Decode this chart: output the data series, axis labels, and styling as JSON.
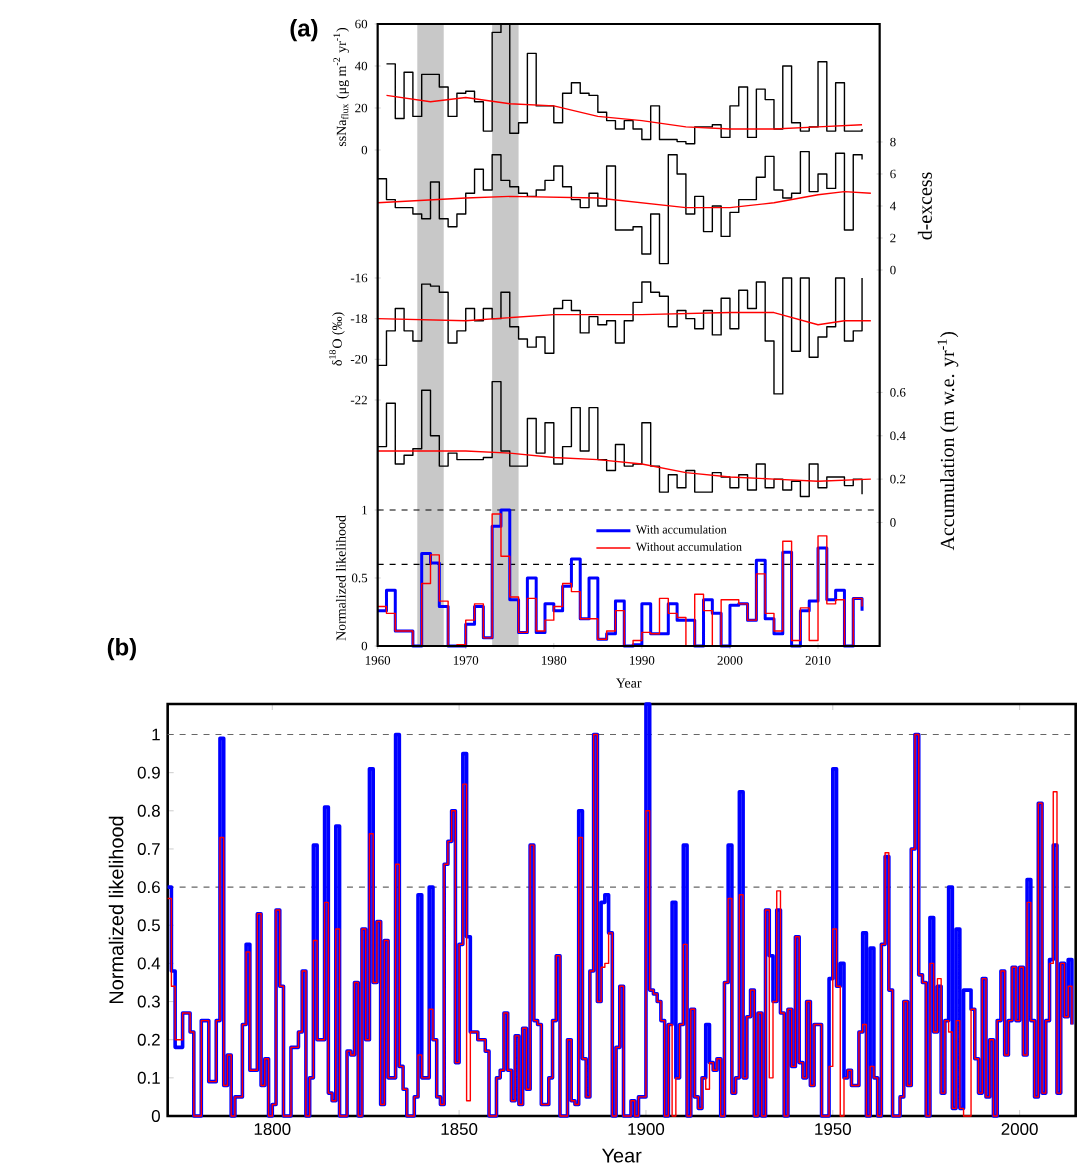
{
  "chart_data": [
    {
      "type": "step",
      "title": "(a)",
      "ylabel": "ssNa$_{flux}$ (μg m$^{-2}$ yr$^{-1}$)",
      "xlim": [
        1960,
        2017
      ],
      "ylim": [
        0,
        60
      ],
      "yticks": [
        0,
        20,
        40,
        60
      ],
      "tick_labels": "y",
      "x": [
        1961,
        1962,
        1963,
        1964,
        1965,
        1966,
        1967,
        1968,
        1969,
        1970,
        1971,
        1972,
        1973,
        1974,
        1975,
        1976,
        1977,
        1978,
        1979,
        1980,
        1981,
        1982,
        1983,
        1984,
        1985,
        1986,
        1987,
        1988,
        1989,
        1990,
        1991,
        1992,
        1993,
        1994,
        1995,
        1996,
        1997,
        1998,
        1999,
        2000,
        2001,
        2002,
        2003,
        2004,
        2005,
        2006,
        2007,
        2008,
        2009,
        2010,
        2011,
        2012,
        2013,
        2014,
        2015
      ],
      "series": [
        {
          "color": "#000000",
          "values": [
            41,
            15,
            37,
            16,
            36,
            36,
            30,
            16,
            27,
            28,
            23,
            9,
            56,
            60,
            8,
            13,
            46,
            21,
            21,
            13,
            27,
            32,
            27,
            26,
            18,
            14,
            10,
            14,
            10,
            5,
            21,
            5,
            5,
            4,
            3,
            11,
            11,
            12,
            6,
            21,
            30,
            6,
            29,
            24,
            10,
            40,
            13,
            9,
            11,
            42,
            9,
            32,
            9,
            9,
            10
          ]
        },
        {
          "type": "line",
          "color": "#ff0000",
          "x": [
            1961,
            1966,
            1970,
            1975,
            1980,
            1985,
            1990,
            1995,
            2000,
            2005,
            2010,
            2015
          ],
          "values": [
            26,
            23,
            25,
            22,
            21,
            16,
            14,
            11,
            10,
            10,
            11,
            12
          ]
        }
      ]
    },
    {
      "type": "step",
      "ylabel": "d-excess",
      "xlim": [
        1960,
        2017
      ],
      "ylim": [
        0,
        8
      ],
      "yticks": [
        0,
        2,
        4,
        6,
        8
      ],
      "tick_labels": "y",
      "x": [
        1960,
        1961,
        1962,
        1963,
        1964,
        1965,
        1966,
        1967,
        1968,
        1969,
        1970,
        1971,
        1972,
        1973,
        1974,
        1975,
        1976,
        1977,
        1978,
        1979,
        1980,
        1981,
        1982,
        1983,
        1984,
        1985,
        1986,
        1987,
        1988,
        1989,
        1990,
        1991,
        1992,
        1993,
        1994,
        1995,
        1996,
        1997,
        1998,
        1999,
        2000,
        2001,
        2002,
        2003,
        2004,
        2005,
        2006,
        2007,
        2008,
        2009,
        2010,
        2011,
        2012,
        2013,
        2014,
        2015
      ],
      "series": [
        {
          "color": "#000000",
          "values": [
            5.7,
            4.4,
            3.9,
            3.9,
            3.5,
            3.2,
            5.5,
            3.2,
            2.7,
            3.5,
            4.8,
            6.3,
            5.0,
            7.2,
            5.6,
            5.2,
            4.8,
            4.6,
            5.0,
            5.6,
            6.5,
            5.2,
            4.4,
            3.9,
            4.8,
            4.0,
            6.5,
            2.5,
            2.5,
            2.7,
            1.0,
            3.5,
            0.4,
            7.2,
            6.0,
            3.5,
            4.6,
            2.4,
            4.0,
            2.1,
            3.6,
            4.4,
            4.4,
            5.8,
            7.1,
            5.0,
            4.5,
            4.8,
            7.4,
            4.9,
            6.0,
            5.1,
            7.3,
            2.5,
            7.2,
            6.9
          ]
        },
        {
          "type": "line",
          "color": "#ff0000",
          "x": [
            1960,
            1970,
            1975,
            1985,
            1995,
            2000,
            2005,
            2010,
            2013,
            2016
          ],
          "values": [
            4.2,
            4.5,
            4.6,
            4.5,
            3.9,
            3.9,
            4.2,
            4.7,
            4.9,
            4.8
          ]
        }
      ]
    },
    {
      "type": "step",
      "ylabel": "δ$^{18}$O (‰)",
      "xlim": [
        1960,
        2017
      ],
      "ylim": [
        -22,
        -16
      ],
      "yticks": [
        -22,
        -20,
        -18,
        -16
      ],
      "tick_labels": "y",
      "x": [
        1960,
        1961,
        1962,
        1963,
        1964,
        1965,
        1966,
        1967,
        1968,
        1969,
        1970,
        1971,
        1972,
        1973,
        1974,
        1975,
        1976,
        1977,
        1978,
        1979,
        1980,
        1981,
        1982,
        1983,
        1984,
        1985,
        1986,
        1987,
        1988,
        1989,
        1990,
        1991,
        1992,
        1993,
        1994,
        1995,
        1996,
        1997,
        1998,
        1999,
        2000,
        2001,
        2002,
        2003,
        2004,
        2005,
        2006,
        2007,
        2008,
        2009,
        2010,
        2011,
        2012,
        2013,
        2014,
        2015
      ],
      "series": [
        {
          "color": "#000000",
          "values": [
            -20.3,
            -18.6,
            -17.5,
            -18.6,
            -19.1,
            -16.3,
            -16.4,
            -16.7,
            -19.2,
            -18.6,
            -17.5,
            -18.1,
            -17.5,
            -18.0,
            -16.7,
            -18.4,
            -19.0,
            -19.4,
            -18.9,
            -19.7,
            -17.5,
            -17.1,
            -17.6,
            -18.7,
            -17.9,
            -18.3,
            -18.1,
            -19.2,
            -18.1,
            -17.2,
            -16.2,
            -16.7,
            -16.9,
            -18.4,
            -17.6,
            -18.0,
            -18.5,
            -17.6,
            -18.8,
            -17.0,
            -18.5,
            -16.6,
            -17.5,
            -16.2,
            -19.1,
            -21.7,
            -16.0,
            -19.6,
            -16.0,
            -19.9,
            -18.9,
            -18.4,
            -16.0,
            -19.1,
            -18.6,
            -16.0
          ]
        },
        {
          "type": "line",
          "color": "#ff0000",
          "x": [
            1960,
            1970,
            1980,
            1990,
            2000,
            2005,
            2010,
            2013,
            2016
          ],
          "values": [
            -18.0,
            -18.1,
            -17.8,
            -17.8,
            -17.7,
            -17.7,
            -18.3,
            -18.1,
            -18.1
          ]
        }
      ]
    },
    {
      "type": "step",
      "ylabel": "Accumulation (m w.e. yr$^{-1}$)",
      "xlim": [
        1960,
        2017
      ],
      "ylim": [
        -0.57,
        2.3
      ],
      "yticks": [
        0,
        0.2,
        0.4,
        0.6
      ],
      "tick_labels": "y",
      "x": [
        1960,
        1961,
        1962,
        1963,
        1964,
        1965,
        1966,
        1967,
        1968,
        1969,
        1970,
        1971,
        1972,
        1973,
        1974,
        1975,
        1976,
        1977,
        1978,
        1979,
        1980,
        1981,
        1982,
        1983,
        1984,
        1985,
        1986,
        1987,
        1988,
        1989,
        1990,
        1991,
        1992,
        1993,
        1994,
        1995,
        1996,
        1997,
        1998,
        1999,
        2000,
        2001,
        2002,
        2003,
        2004,
        2005,
        2006,
        2007,
        2008,
        2009,
        2010,
        2011,
        2012,
        2013,
        2014,
        2015
      ],
      "series": [
        {
          "color": "#000000",
          "values": [
            0.35,
            0.55,
            0.27,
            0.31,
            0.34,
            0.61,
            0.4,
            0.26,
            0.32,
            0.29,
            0.29,
            0.29,
            0.3,
            0.65,
            0.33,
            0.26,
            0.26,
            0.48,
            0.32,
            0.46,
            0.27,
            0.35,
            0.53,
            0.33,
            0.53,
            0.29,
            0.24,
            0.36,
            0.26,
            0.27,
            0.46,
            0.26,
            0.14,
            0.22,
            0.16,
            0.24,
            0.14,
            0.14,
            0.23,
            0.21,
            0.16,
            0.22,
            0.15,
            0.27,
            0.16,
            0.2,
            0.15,
            0.19,
            0.12,
            0.27,
            0.16,
            0.21,
            0.21,
            0.17,
            0.2,
            0.13
          ]
        },
        {
          "type": "line",
          "color": "#ff0000",
          "x": [
            1960,
            1970,
            1975,
            1980,
            1985,
            1990,
            1995,
            2000,
            2005,
            2010,
            2016
          ],
          "values": [
            0.33,
            0.33,
            0.32,
            0.3,
            0.29,
            0.27,
            0.23,
            0.21,
            0.2,
            0.19,
            0.2
          ]
        }
      ]
    },
    {
      "type": "step",
      "xlabel": "Year",
      "ylabel": "Normalized likelihood",
      "xlim": [
        1960,
        2017
      ],
      "ylim": [
        0,
        1
      ],
      "xticks": [
        1960,
        1970,
        1980,
        1990,
        2000,
        2010
      ],
      "yticks": [
        0,
        0.5,
        1
      ],
      "legend": "top",
      "ref_lines": [
        {
          "axis": "y",
          "value": 1,
          "color": "#000000",
          "line_style": "dashed"
        },
        {
          "axis": "y",
          "value": 0.6,
          "color": "#000000",
          "line_style": "dashed"
        }
      ],
      "bands": [
        {
          "axis": "x",
          "from": 1964.5,
          "to": 1967.5,
          "color": "#c8c8c8"
        },
        {
          "axis": "x",
          "from": 1973,
          "to": 1976,
          "color": "#c8c8c8"
        }
      ],
      "x": [
        1960,
        1961,
        1962,
        1963,
        1964,
        1965,
        1966,
        1967,
        1968,
        1969,
        1970,
        1971,
        1972,
        1973,
        1974,
        1975,
        1976,
        1977,
        1978,
        1979,
        1980,
        1981,
        1982,
        1983,
        1984,
        1985,
        1986,
        1987,
        1988,
        1989,
        1990,
        1991,
        1992,
        1993,
        1994,
        1995,
        1996,
        1997,
        1998,
        1999,
        2000,
        2001,
        2002,
        2003,
        2004,
        2005,
        2006,
        2007,
        2008,
        2009,
        2010,
        2011,
        2012,
        2013,
        2014,
        2015
      ],
      "series": [
        {
          "name": "With accumulation",
          "color": "#0000ff",
          "values": [
            0.26,
            0.41,
            0.11,
            0.11,
            0,
            0.68,
            0.61,
            0.29,
            0,
            0,
            0.16,
            0.29,
            0.06,
            0.88,
            1.0,
            0.34,
            0.1,
            0.5,
            0.1,
            0.31,
            0.26,
            0.44,
            0.64,
            0.2,
            0.5,
            0.05,
            0.09,
            0.33,
            0,
            0.01,
            0.31,
            0.09,
            0.09,
            0.31,
            0.19,
            0.19,
            0,
            0.34,
            0.24,
            0,
            0.3,
            0.31,
            0.19,
            0.63,
            0.2,
            0.09,
            0.69,
            0,
            0.26,
            0.33,
            0.72,
            0.34,
            0.41,
            0,
            0.35,
            0.26
          ]
        },
        {
          "name": "Without accumulation",
          "color": "#ff0000",
          "values": [
            0.29,
            0.24,
            0.11,
            0.11,
            0,
            0.46,
            0.67,
            0.33,
            0,
            0.01,
            0.19,
            0.31,
            0.06,
            0.97,
            0.66,
            0.36,
            0.1,
            0.35,
            0.11,
            0.19,
            0.29,
            0.46,
            0.4,
            0.2,
            0.2,
            0.05,
            0.11,
            0.26,
            0,
            0.04,
            0.1,
            0.09,
            0.35,
            0.24,
            0.21,
            0,
            0.38,
            0.26,
            0,
            0.34,
            0.34,
            0.31,
            0.19,
            0.53,
            0.24,
            0.11,
            0.77,
            0.04,
            0.28,
            0.04,
            0.81,
            0.31,
            0.34,
            0,
            0.35,
            0.29
          ]
        }
      ]
    },
    {
      "type": "step",
      "title": "(b)",
      "xlabel": "Year",
      "ylabel": "Normalized likelihood",
      "xlim": [
        1772,
        2015
      ],
      "ylim": [
        0,
        1.08
      ],
      "xticks": [
        1800,
        1850,
        1900,
        1950,
        2000
      ],
      "yticks": [
        0,
        0.1,
        0.2,
        0.3,
        0.4,
        0.5,
        0.6,
        0.7,
        0.8,
        0.9,
        1
      ],
      "ref_lines": [
        {
          "axis": "y",
          "value": 1,
          "color": "#666666",
          "line_style": "dashed"
        },
        {
          "axis": "y",
          "value": 0.6,
          "color": "#666666",
          "line_style": "dashed"
        }
      ],
      "x": [
        1772,
        1773,
        1774,
        1776,
        1778,
        1779,
        1781,
        1783,
        1785,
        1786,
        1787,
        1788,
        1789,
        1790,
        1792,
        1793,
        1794,
        1796,
        1797,
        1798,
        1799,
        1800,
        1801,
        1802,
        1803,
        1805,
        1807,
        1808,
        1809,
        1810,
        1811,
        1812,
        1814,
        1815,
        1816,
        1817,
        1818,
        1820,
        1821,
        1822,
        1823,
        1824,
        1825,
        1826,
        1827,
        1828,
        1829,
        1830,
        1831,
        1833,
        1834,
        1835,
        1836,
        1838,
        1839,
        1840,
        1842,
        1843,
        1844,
        1845,
        1846,
        1847,
        1848,
        1849,
        1850,
        1851,
        1852,
        1853,
        1855,
        1857,
        1858,
        1860,
        1861,
        1862,
        1863,
        1864,
        1865,
        1866,
        1867,
        1868,
        1869,
        1870,
        1871,
        1872,
        1874,
        1875,
        1876,
        1877,
        1879,
        1880,
        1881,
        1882,
        1883,
        1884,
        1885,
        1886,
        1887,
        1888,
        1889,
        1890,
        1891,
        1892,
        1893,
        1894,
        1896,
        1897,
        1898,
        1899,
        1900,
        1901,
        1902,
        1903,
        1904,
        1905,
        1906,
        1907,
        1908,
        1909,
        1910,
        1911,
        1912,
        1913,
        1914,
        1915,
        1916,
        1917,
        1918,
        1919,
        1920,
        1921,
        1922,
        1923,
        1924,
        1925,
        1926,
        1927,
        1928,
        1929,
        1930,
        1931,
        1932,
        1933,
        1934,
        1935,
        1936,
        1937,
        1938,
        1939,
        1940,
        1941,
        1942,
        1943,
        1944,
        1945,
        1946,
        1947,
        1949,
        1950,
        1951,
        1952,
        1953,
        1954,
        1955,
        1957,
        1958,
        1959,
        1960,
        1961,
        1962,
        1963,
        1964,
        1965,
        1966,
        1968,
        1969,
        1970,
        1971,
        1972,
        1973,
        1974,
        1975,
        1976,
        1977,
        1978,
        1979,
        1980,
        1981,
        1982,
        1983,
        1984,
        1985,
        1987,
        1988,
        1989,
        1990,
        1991,
        1992,
        1993,
        1994,
        1995,
        1996,
        1997,
        1998,
        1999,
        2000,
        2001,
        2002,
        2003,
        2004,
        2005,
        2006,
        2007,
        2008,
        2009,
        2010,
        2011,
        2012,
        2013,
        2014
      ],
      "series": [
        {
          "color": "#0000ff",
          "values": [
            0.6,
            0.38,
            0.18,
            0.27,
            0.22,
            0,
            0.25,
            0.09,
            0.25,
            0.99,
            0.08,
            0.16,
            0,
            0.05,
            0.24,
            0.45,
            0.12,
            0.53,
            0.08,
            0.15,
            0,
            0.03,
            0.54,
            0.34,
            0,
            0.18,
            0.22,
            0.38,
            0,
            0.1,
            0.71,
            0.2,
            0.81,
            0.06,
            0.04,
            0.76,
            0,
            0.17,
            0.16,
            0.35,
            0,
            0.49,
            0.2,
            0.91,
            0.35,
            0.51,
            0.03,
            0.46,
            0.1,
            1.0,
            0.13,
            0.07,
            0,
            0.05,
            0.58,
            0.1,
            0.6,
            0.2,
            0.05,
            0.03,
            0.66,
            0.72,
            0.8,
            0.14,
            0.45,
            0.95,
            0.47,
            0.22,
            0.2,
            0.17,
            0,
            0.1,
            0.12,
            0.27,
            0.12,
            0.04,
            0.21,
            0.03,
            0.23,
            0.07,
            0.71,
            0.25,
            0.24,
            0.03,
            0.1,
            0.25,
            0.42,
            0,
            0.2,
            0.04,
            0.03,
            0.8,
            0.15,
            0.05,
            0.38,
            1.0,
            0.3,
            0.56,
            0.58,
            0.48,
            0,
            0.18,
            0.34,
            0,
            0.04,
            0,
            0.05,
            0.05,
            1.08,
            0.33,
            0.32,
            0.3,
            0.25,
            0,
            0.24,
            0.56,
            0.1,
            0.24,
            0.71,
            0,
            0.28,
            0.05,
            0.02,
            0.1,
            0.24,
            0.14,
            0.12,
            0.15,
            0,
            0.35,
            0.71,
            0.06,
            0.1,
            0.85,
            0.1,
            0.26,
            0.33,
            0,
            0.27,
            0,
            0.54,
            0.42,
            0.3,
            0.54,
            0.27,
            0,
            0.28,
            0.13,
            0.47,
            0.14,
            0.1,
            0.3,
            0.08,
            0.24,
            0.24,
            0,
            0.36,
            0.91,
            0.34,
            0.4,
            0.1,
            0.12,
            0.08,
            0.22,
            0.48,
            0,
            0.44,
            0.1,
            0,
            0.45,
            0.68,
            0.33,
            0,
            0.05,
            0.3,
            0.08,
            0.7,
            1.0,
            0.37,
            0.35,
            0,
            0.52,
            0.22,
            0.34,
            0.06,
            0.25,
            0.6,
            0.02,
            0.49,
            0.02,
            0.33,
            0.28,
            0.15,
            0.06,
            0.36,
            0.05,
            0.2,
            0,
            0.25,
            0.38,
            0.16,
            0.25,
            0.39,
            0.25,
            0.39,
            0.16,
            0.62,
            0.25,
            0.05,
            0.82,
            0.06,
            0.25,
            0.41,
            0.71,
            0.06,
            0.4,
            0.26,
            0.41,
            0.24
          ]
        },
        {
          "color": "#ff0000",
          "values": [
            0.57,
            0.34,
            0.2,
            0.27,
            0.22,
            0,
            0.25,
            0.09,
            0.25,
            0.73,
            0.08,
            0.16,
            0,
            0.05,
            0.24,
            0.43,
            0.12,
            0.53,
            0.08,
            0.15,
            0,
            0.03,
            0.54,
            0.34,
            0,
            0.18,
            0.22,
            0.38,
            0,
            0.1,
            0.46,
            0.2,
            0.56,
            0.06,
            0.04,
            0.49,
            0,
            0.17,
            0.16,
            0.35,
            0,
            0.49,
            0.2,
            0.74,
            0.35,
            0.51,
            0.03,
            0.46,
            0.1,
            0.66,
            0.13,
            0.07,
            0,
            0.05,
            0.16,
            0.1,
            0.28,
            0.2,
            0.05,
            0.03,
            0.66,
            0.72,
            0.8,
            0.14,
            0.45,
            0.87,
            0.04,
            0.22,
            0.2,
            0.17,
            0,
            0.1,
            0.12,
            0.27,
            0.12,
            0.04,
            0.21,
            0.03,
            0.23,
            0.07,
            0.71,
            0.25,
            0.24,
            0.03,
            0.1,
            0.25,
            0.42,
            0,
            0.2,
            0.04,
            0.03,
            0.73,
            0.15,
            0.05,
            0.38,
            1.0,
            0.3,
            0.39,
            0.4,
            0.48,
            0,
            0.18,
            0.34,
            0,
            0.04,
            0,
            0.05,
            0.05,
            0.8,
            0.33,
            0.32,
            0.3,
            0.25,
            0,
            0.24,
            0,
            0.1,
            0.24,
            0.45,
            0,
            0.28,
            0.05,
            0.02,
            0.1,
            0.07,
            0.14,
            0.12,
            0.15,
            0,
            0.35,
            0.57,
            0.06,
            0.1,
            0.58,
            0.1,
            0.26,
            0.33,
            0,
            0.27,
            0,
            0.54,
            0.1,
            0.3,
            0.59,
            0.27,
            0,
            0.28,
            0.13,
            0.47,
            0.14,
            0.1,
            0.3,
            0.08,
            0.24,
            0.24,
            0,
            0.13,
            0.49,
            0.34,
            0,
            0.1,
            0.12,
            0.08,
            0.22,
            0.24,
            0,
            0.13,
            0.1,
            0,
            0.45,
            0.69,
            0.33,
            0,
            0.05,
            0.3,
            0.08,
            0.7,
            1.0,
            0.37,
            0.35,
            0,
            0.4,
            0.22,
            0.36,
            0.06,
            0.25,
            0.22,
            0.02,
            0.25,
            0.02,
            0,
            0.28,
            0.15,
            0.06,
            0.36,
            0.05,
            0.2,
            0,
            0.25,
            0.38,
            0.16,
            0.25,
            0.39,
            0.25,
            0.39,
            0.16,
            0.56,
            0.25,
            0.05,
            0.82,
            0.06,
            0.25,
            0.4,
            0.85,
            0.06,
            0.4,
            0.26,
            0.34,
            0.24
          ]
        }
      ]
    }
  ]
}
